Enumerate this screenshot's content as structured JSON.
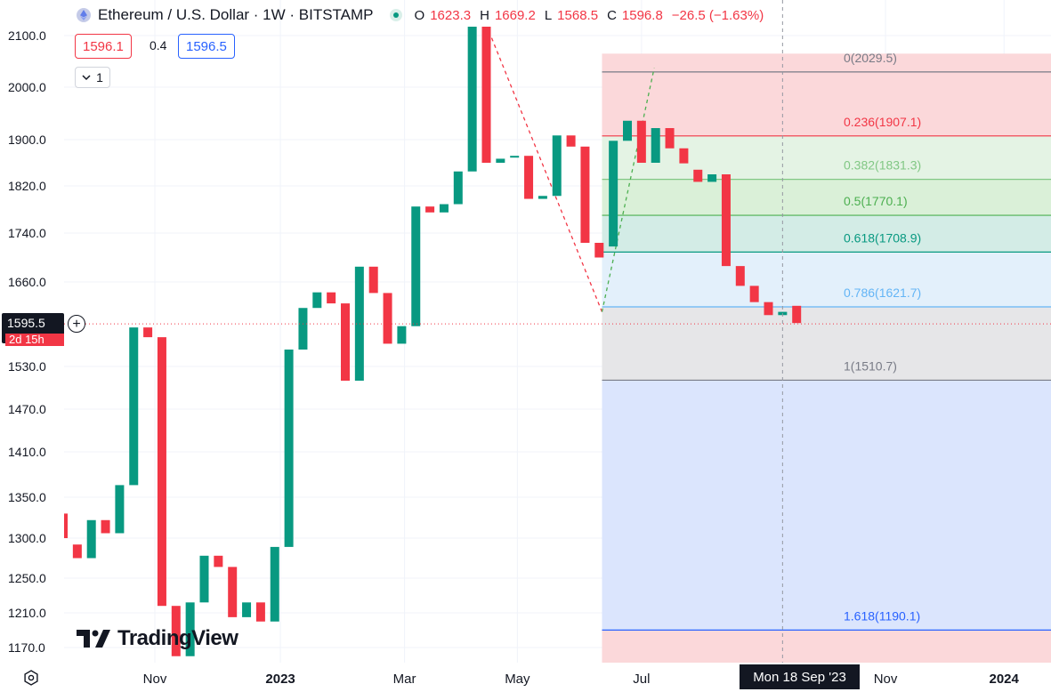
{
  "header": {
    "title": "Ethereum / U.S. Dollar · 1W · BITSTAMP",
    "ohlc": [
      {
        "label": "O",
        "value": "1623.3"
      },
      {
        "label": "H",
        "value": "1669.2"
      },
      {
        "label": "L",
        "value": "1568.5"
      },
      {
        "label": "C",
        "value": "1596.8"
      }
    ],
    "change": "−26.5 (−1.63%)"
  },
  "trade": {
    "sell_price": "1596.1",
    "spread": "0.4",
    "buy_price": "1596.5"
  },
  "collapse_count": "1",
  "logo_text": "TradingView",
  "current_price_tag": "1595.5",
  "countdown": "2d 15h",
  "crosshair_time": "Mon 18 Sep '23",
  "colors": {
    "up": "#089981",
    "down": "#f23645",
    "grid": "#f0f3fa"
  },
  "chart_data": {
    "type": "candlestick",
    "symbol": "Ethereum / U.S. Dollar",
    "interval": "1W",
    "exchange": "BITSTAMP",
    "y_ticks": [
      2100.0,
      2000.0,
      1900.0,
      1820.0,
      1740.0,
      1660.0,
      1530.0,
      1470.0,
      1410.0,
      1350.0,
      1300.0,
      1250.0,
      1210.0,
      1170.0
    ],
    "x_ticks": [
      {
        "label": "Nov",
        "index": 6.5,
        "bold": false
      },
      {
        "label": "2023",
        "index": 15.4,
        "bold": true
      },
      {
        "label": "Mar",
        "index": 24.2,
        "bold": false
      },
      {
        "label": "May",
        "index": 32.2,
        "bold": false
      },
      {
        "label": "Jul",
        "index": 41.0,
        "bold": false
      },
      {
        "label": "Nov",
        "index": 58.3,
        "bold": false
      },
      {
        "label": "2024",
        "index": 66.7,
        "bold": true
      }
    ],
    "candles": [
      {
        "o": 1330,
        "c": 1300
      },
      {
        "o": 1292,
        "c": 1275
      },
      {
        "o": 1275,
        "c": 1322
      },
      {
        "o": 1322,
        "c": 1306
      },
      {
        "o": 1306,
        "c": 1366
      },
      {
        "o": 1366,
        "c": 1590
      },
      {
        "o": 1590,
        "c": 1575
      },
      {
        "o": 1575,
        "c": 1218
      },
      {
        "o": 1218,
        "c": 1160
      },
      {
        "o": 1160,
        "c": 1222
      },
      {
        "o": 1222,
        "c": 1278
      },
      {
        "o": 1278,
        "c": 1264
      },
      {
        "o": 1264,
        "c": 1205
      },
      {
        "o": 1205,
        "c": 1222
      },
      {
        "o": 1222,
        "c": 1200
      },
      {
        "o": 1200,
        "c": 1289
      },
      {
        "o": 1289,
        "c": 1556
      },
      {
        "o": 1556,
        "c": 1620
      },
      {
        "o": 1620,
        "c": 1644
      },
      {
        "o": 1644,
        "c": 1627
      },
      {
        "o": 1627,
        "c": 1510
      },
      {
        "o": 1510,
        "c": 1685
      },
      {
        "o": 1685,
        "c": 1643
      },
      {
        "o": 1643,
        "c": 1565
      },
      {
        "o": 1565,
        "c": 1592
      },
      {
        "o": 1592,
        "c": 1785
      },
      {
        "o": 1785,
        "c": 1775
      },
      {
        "o": 1775,
        "c": 1789
      },
      {
        "o": 1789,
        "c": 1845
      },
      {
        "o": 1845,
        "c": 2121
      },
      {
        "o": 2121,
        "c": 1860
      },
      {
        "o": 1860,
        "c": 1867
      },
      {
        "o": 1871,
        "c": 1872
      },
      {
        "o": 1872,
        "c": 1798
      },
      {
        "o": 1798,
        "c": 1803
      },
      {
        "o": 1803,
        "c": 1908
      },
      {
        "o": 1908,
        "c": 1888
      },
      {
        "o": 1888,
        "c": 1724
      },
      {
        "o": 1724,
        "c": 1700
      },
      {
        "o": 1718,
        "c": 1898
      },
      {
        "o": 1898,
        "c": 1936
      },
      {
        "o": 1936,
        "c": 1860
      },
      {
        "o": 1860,
        "c": 1922
      },
      {
        "o": 1922,
        "c": 1885
      },
      {
        "o": 1885,
        "c": 1859
      },
      {
        "o": 1848,
        "c": 1827
      },
      {
        "o": 1827,
        "c": 1840
      },
      {
        "o": 1840,
        "c": 1686
      },
      {
        "o": 1686,
        "c": 1654
      },
      {
        "o": 1654,
        "c": 1629
      },
      {
        "o": 1629,
        "c": 1609
      },
      {
        "o": 1609,
        "c": 1614
      },
      {
        "o": 1623.3,
        "c": 1596.8
      }
    ],
    "current_price": 1595.5,
    "fib_retracement": {
      "start_index": 38.2,
      "levels": [
        {
          "ratio": "0",
          "value": 2029.5,
          "label": "0(2029.5)",
          "color": "#787b86",
          "fill": "#fbd8da"
        },
        {
          "ratio": "0.236",
          "value": 1907.1,
          "label": "0.236(1907.1)",
          "color": "#f23645",
          "fill": "#e4f3e4"
        },
        {
          "ratio": "0.382",
          "value": 1831.3,
          "label": "0.382(1831.3)",
          "color": "#81c784",
          "fill": "#daf0d8"
        },
        {
          "ratio": "0.5",
          "value": 1770.1,
          "label": "0.5(1770.1)",
          "color": "#4caf50",
          "fill": "#d3ece6"
        },
        {
          "ratio": "0.618",
          "value": 1708.9,
          "label": "0.618(1708.9)",
          "color": "#089981",
          "fill": "#e3f0fb"
        },
        {
          "ratio": "0.786",
          "value": 1621.7,
          "label": "0.786(1621.7)",
          "color": "#64b5f6",
          "fill": "#e6e6e8"
        },
        {
          "ratio": "1",
          "value": 1510.7,
          "label": "1(1510.7)",
          "color": "#787b86",
          "fill": "#dbe5fd"
        },
        {
          "ratio": "1.618",
          "value": 1190.1,
          "label": "1.618(1190.1)",
          "color": "#2962ff",
          "fill": "#fbd8da"
        }
      ]
    },
    "trend_lines": [
      {
        "color": "#f23645",
        "from": {
          "index": 30.0,
          "value": 2121
        },
        "to": {
          "index": 38.2,
          "value": 1614
        }
      },
      {
        "color": "#4caf50",
        "from": {
          "index": 38.2,
          "value": 1614
        },
        "to": {
          "index": 41.9,
          "value": 2037
        }
      }
    ],
    "crosshair_index": 51.0
  }
}
